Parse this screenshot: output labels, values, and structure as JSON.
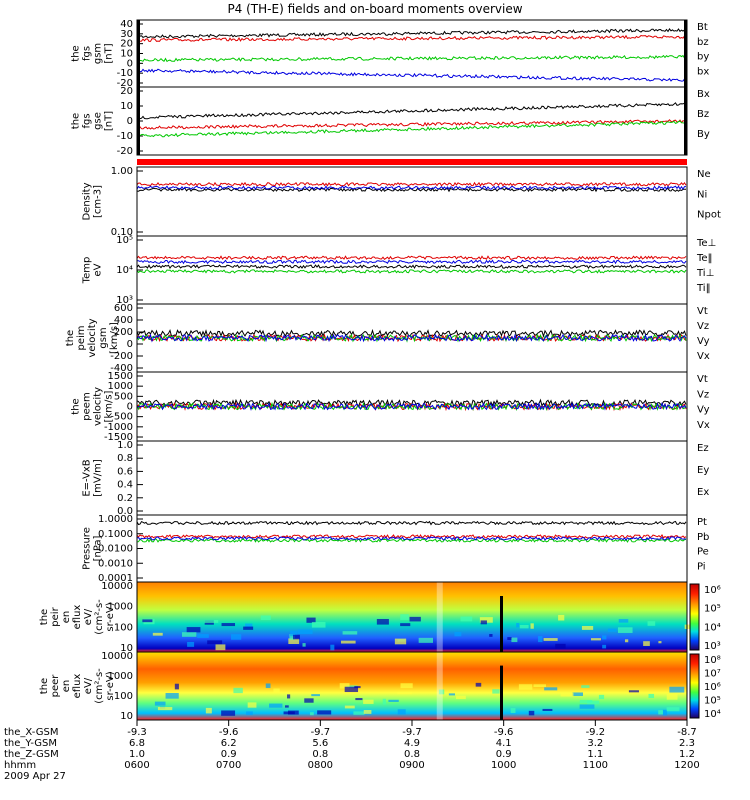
{
  "title": "P4 (TH-E) fields and on-board moments overview",
  "colors": {
    "black": "#000000",
    "red": "#e00000",
    "green": "#00c800",
    "blue": "#0000e0"
  },
  "chart_data": [
    {
      "type": "line",
      "panel": "fgs-gsm",
      "ylabel": [
        "the",
        "fgs",
        "gsm",
        "[nT]"
      ],
      "yticks": [
        "40",
        "30",
        "20",
        "10",
        "0",
        "-10",
        "-20"
      ],
      "ylim": [
        -20,
        40
      ],
      "series": [
        {
          "name": "Bt",
          "color": "black"
        },
        {
          "name": "bz",
          "color": "red"
        },
        {
          "name": "by",
          "color": "green"
        },
        {
          "name": "bx",
          "color": "blue"
        }
      ]
    },
    {
      "type": "line",
      "panel": "fgs-gse",
      "ylabel": [
        "the",
        "fgs",
        "gse",
        "[nT]"
      ],
      "yticks": [
        "20",
        "10",
        "0",
        "-10",
        "-20"
      ],
      "ylim": [
        -20,
        20
      ],
      "series": [
        {
          "name": "Bx",
          "color": "black"
        },
        {
          "name": "Bz",
          "color": "red"
        },
        {
          "name": "By",
          "color": "green"
        }
      ]
    },
    {
      "type": "line",
      "panel": "density",
      "log": true,
      "ylabel": [
        "Density",
        "[cm-3]"
      ],
      "yticks": [
        "1.00",
        "0.10"
      ],
      "series": [
        {
          "name": "Ne",
          "color": "red"
        },
        {
          "name": "Ni",
          "color": "black"
        },
        {
          "name": "Npot",
          "color": "blue"
        }
      ]
    },
    {
      "type": "line",
      "panel": "temperature",
      "log": true,
      "ylabel": [
        "Temp",
        "eV"
      ],
      "yticks": [
        "10⁵",
        "10⁴",
        "10³"
      ],
      "series": [
        {
          "name": "Te⊥",
          "color": "red"
        },
        {
          "name": "Te‖",
          "color": "black"
        },
        {
          "name": "Ti⊥",
          "color": "blue"
        },
        {
          "name": "Ti‖",
          "color": "green"
        }
      ]
    },
    {
      "type": "line",
      "panel": "peim-velocity",
      "ylabel": [
        "the",
        "peim",
        "velocity",
        "gsm",
        "[km/s]"
      ],
      "yticks": [
        "600",
        "400",
        "200",
        "0",
        "-200",
        "-400"
      ],
      "ylim": [
        -400,
        600
      ],
      "series": [
        {
          "name": "Vt",
          "color": "black"
        },
        {
          "name": "Vz",
          "color": "red"
        },
        {
          "name": "Vy",
          "color": "green"
        },
        {
          "name": "Vx",
          "color": "blue"
        }
      ]
    },
    {
      "type": "line",
      "panel": "peem-velocity",
      "ylabel": [
        "the",
        "peem",
        "velocity",
        "[km/s]"
      ],
      "yticks": [
        "1500",
        "1000",
        "500",
        "0",
        "-500",
        "-1000",
        "-1500"
      ],
      "ylim": [
        -1500,
        1500
      ],
      "series": [
        {
          "name": "Vt",
          "color": "black"
        },
        {
          "name": "Vz",
          "color": "red"
        },
        {
          "name": "Vy",
          "color": "green"
        },
        {
          "name": "Vx",
          "color": "blue"
        }
      ]
    },
    {
      "type": "line",
      "panel": "E-VxB",
      "ylabel": [
        "E=-VxB",
        "[mV/m]"
      ],
      "yticks": [
        "1.0",
        "0.8",
        "0.6",
        "0.4",
        "0.2",
        "0.0"
      ],
      "ylim": [
        0,
        1
      ],
      "series": [
        {
          "name": "Ez",
          "color": "red"
        },
        {
          "name": "Ey",
          "color": "green"
        },
        {
          "name": "Ex",
          "color": "blue"
        }
      ]
    },
    {
      "type": "line",
      "panel": "pressure",
      "log": true,
      "ylabel": [
        "Pressure",
        "[nPa]"
      ],
      "yticks": [
        "1.0000",
        "0.1000",
        "0.0100",
        "0.0010",
        "0.0001"
      ],
      "series": [
        {
          "name": "Pt",
          "color": "black"
        },
        {
          "name": "Pb",
          "color": "red"
        },
        {
          "name": "Pe",
          "color": "green"
        },
        {
          "name": "Pi",
          "color": "blue"
        }
      ]
    },
    {
      "type": "heatmap",
      "panel": "peir-eflux",
      "ylabel": [
        "the",
        "peir",
        "en",
        "eflux",
        "eV/",
        "(cm²-s-",
        "sr-eV)"
      ],
      "yticks": [
        "10000",
        "1000",
        "100",
        "10"
      ],
      "colorbar": [
        "10⁶",
        "10⁵",
        "10⁴",
        "10³"
      ]
    },
    {
      "type": "heatmap",
      "panel": "peer-eflux",
      "ylabel": [
        "the",
        "peer",
        "en",
        "eflux",
        "eV/",
        "(cm²-s-",
        "sr-eV)"
      ],
      "yticks": [
        "10000",
        "1000",
        "100",
        "10"
      ],
      "colorbar": [
        "10⁸",
        "10⁷",
        "10⁶",
        "10⁵",
        "10⁴"
      ]
    }
  ],
  "x_axis": {
    "rows": [
      {
        "label": "the_X-GSM",
        "values": [
          "-9.3",
          "-9.6",
          "-9.7",
          "-9.7",
          "-9.6",
          "-9.2",
          "-8.7"
        ]
      },
      {
        "label": "the_Y-GSM",
        "values": [
          "6.8",
          "6.2",
          "5.6",
          "4.9",
          "4.1",
          "3.2",
          "2.3"
        ]
      },
      {
        "label": "the_Z-GSM",
        "values": [
          "1.0",
          "0.9",
          "0.8",
          "0.8",
          "0.9",
          "1.1",
          "1.2"
        ]
      },
      {
        "label": "hhmm",
        "values": [
          "0600",
          "0700",
          "0800",
          "0900",
          "1000",
          "1100",
          "1200"
        ]
      }
    ],
    "date": "2009 Apr 27"
  }
}
